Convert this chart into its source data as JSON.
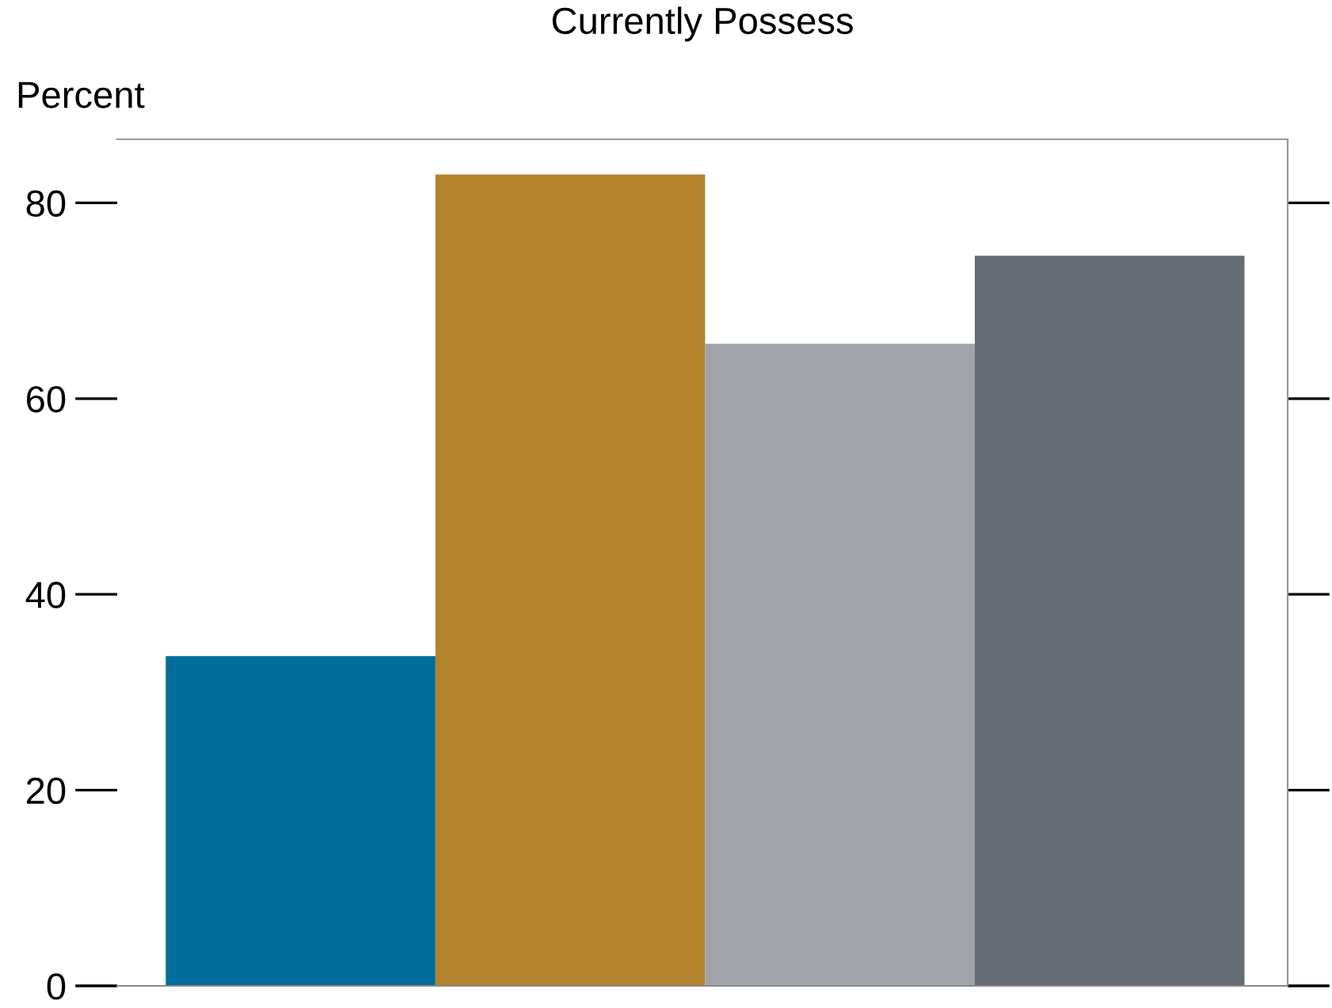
{
  "chart_data": {
    "type": "bar",
    "title": "Currently Possess",
    "ylabel": "Percent",
    "categories": [
      null,
      null,
      null,
      null
    ],
    "values": [
      33.7,
      82.9,
      65.6,
      74.6
    ],
    "colors": [
      "#006d9c",
      "#b3822d",
      "#a0a3aa",
      "#656c76"
    ],
    "ylim": [
      0,
      86.5
    ],
    "yticks": [
      0,
      20,
      40,
      60,
      80
    ],
    "grid": false,
    "legend": false
  }
}
